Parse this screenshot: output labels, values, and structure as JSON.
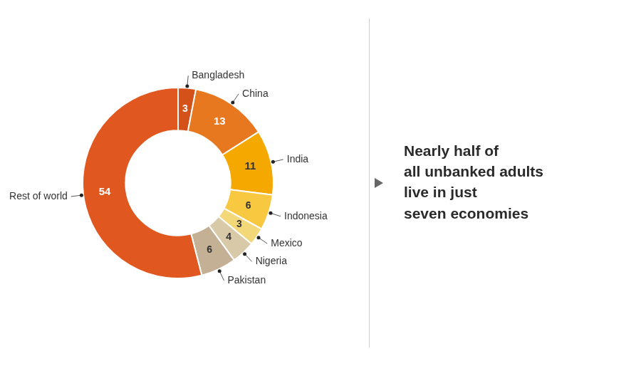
{
  "chart_data": {
    "type": "doughnut",
    "categories": [
      "Bangladesh",
      "China",
      "India",
      "Indonesia",
      "Mexico",
      "Nigeria",
      "Pakistan",
      "Rest of world"
    ],
    "values": [
      3,
      13,
      11,
      6,
      3,
      4,
      6,
      54
    ],
    "colors": [
      "#D4521A",
      "#E87820",
      "#F5A800",
      "#F7C840",
      "#F2D878",
      "#D8C9A8",
      "#C4B094",
      "#E05820"
    ],
    "data_labels": true,
    "annotation": "Nearly half of\nall unbanked adults\nlive in just\nseven economies"
  }
}
